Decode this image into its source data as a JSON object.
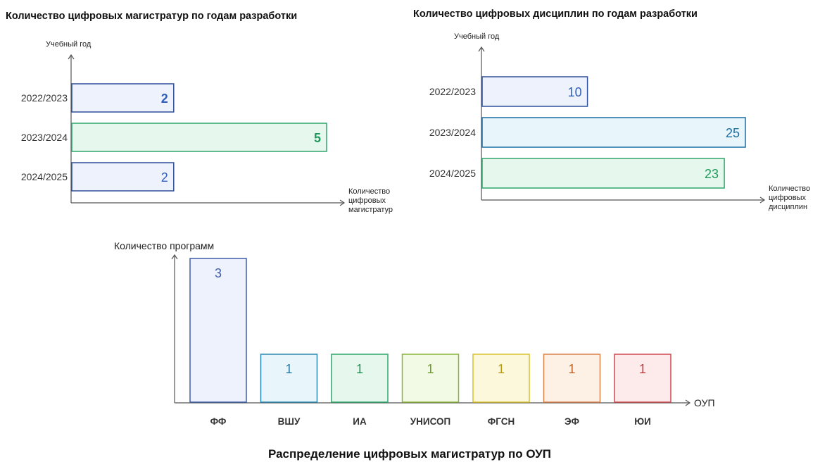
{
  "chart_data": [
    {
      "type": "bar",
      "orientation": "horizontal",
      "title": "Количество цифровых магистратур по годам разработки",
      "ylabel": "Учебный год",
      "xlabel": "Количество цифровых магистратур",
      "xlabel_lines": [
        "Количество",
        "цифровых",
        "магистратур"
      ],
      "categories": [
        "2022/2023",
        "2023/2024",
        "2024/2025"
      ],
      "values": [
        2,
        5,
        2
      ],
      "colors": [
        {
          "stroke": "#2f4f9a",
          "fill": "#eef2fc",
          "text": "#2f5fb8",
          "bold": true
        },
        {
          "stroke": "#2ea66a",
          "fill": "#e6f8ee",
          "text": "#1f9a5c",
          "bold": true
        },
        {
          "stroke": "#2f4f9a",
          "fill": "#eef2fc",
          "text": "#2f5fb8",
          "bold": false
        }
      ],
      "xlim": [
        0,
        5
      ]
    },
    {
      "type": "bar",
      "orientation": "horizontal",
      "title": "Количество цифровых дисциплин по годам разработки",
      "ylabel": "Учебный год",
      "xlabel": "Количество цифровых дисциплин",
      "xlabel_lines": [
        "Количество",
        "цифровых",
        "дисциплин"
      ],
      "categories": [
        "2022/2023",
        "2023/2024",
        "2024/2025"
      ],
      "values": [
        10,
        25,
        23
      ],
      "colors": [
        {
          "stroke": "#2f4f9a",
          "fill": "#eef2fc",
          "text": "#2f5fb8",
          "bold": false
        },
        {
          "stroke": "#1f6fa0",
          "fill": "#e8f5fb",
          "text": "#1f6fa0",
          "bold": false
        },
        {
          "stroke": "#2ea66a",
          "fill": "#e6f8ee",
          "text": "#1f9a5c",
          "bold": false
        }
      ],
      "xlim": [
        0,
        25
      ]
    },
    {
      "type": "bar",
      "orientation": "vertical",
      "title": "Распределение цифровых магистратур по ОУП",
      "ylabel": "Количество программ",
      "xlabel": "ОУП",
      "categories": [
        "ФФ",
        "ВШУ",
        "ИА",
        "УНИСОП",
        "ФГСН",
        "ЭФ",
        "ЮИ"
      ],
      "values": [
        3,
        1,
        1,
        1,
        1,
        1,
        1
      ],
      "colors": [
        {
          "stroke": "#3e5ca8",
          "fill": "#eef2fc",
          "text": "#3e5ca8"
        },
        {
          "stroke": "#2a88b0",
          "fill": "#e8f6fb",
          "text": "#2a7aa0"
        },
        {
          "stroke": "#2ea66a",
          "fill": "#e6f8ee",
          "text": "#1f8f58"
        },
        {
          "stroke": "#8ab53a",
          "fill": "#f2f9e4",
          "text": "#6f9a25"
        },
        {
          "stroke": "#d9c22e",
          "fill": "#fcf8dc",
          "text": "#b79c12"
        },
        {
          "stroke": "#d9824a",
          "fill": "#fdf1e6",
          "text": "#c2632a"
        },
        {
          "stroke": "#cf4a52",
          "fill": "#fdeaea",
          "text": "#c23a44"
        }
      ],
      "ylim": [
        0,
        3
      ]
    }
  ]
}
